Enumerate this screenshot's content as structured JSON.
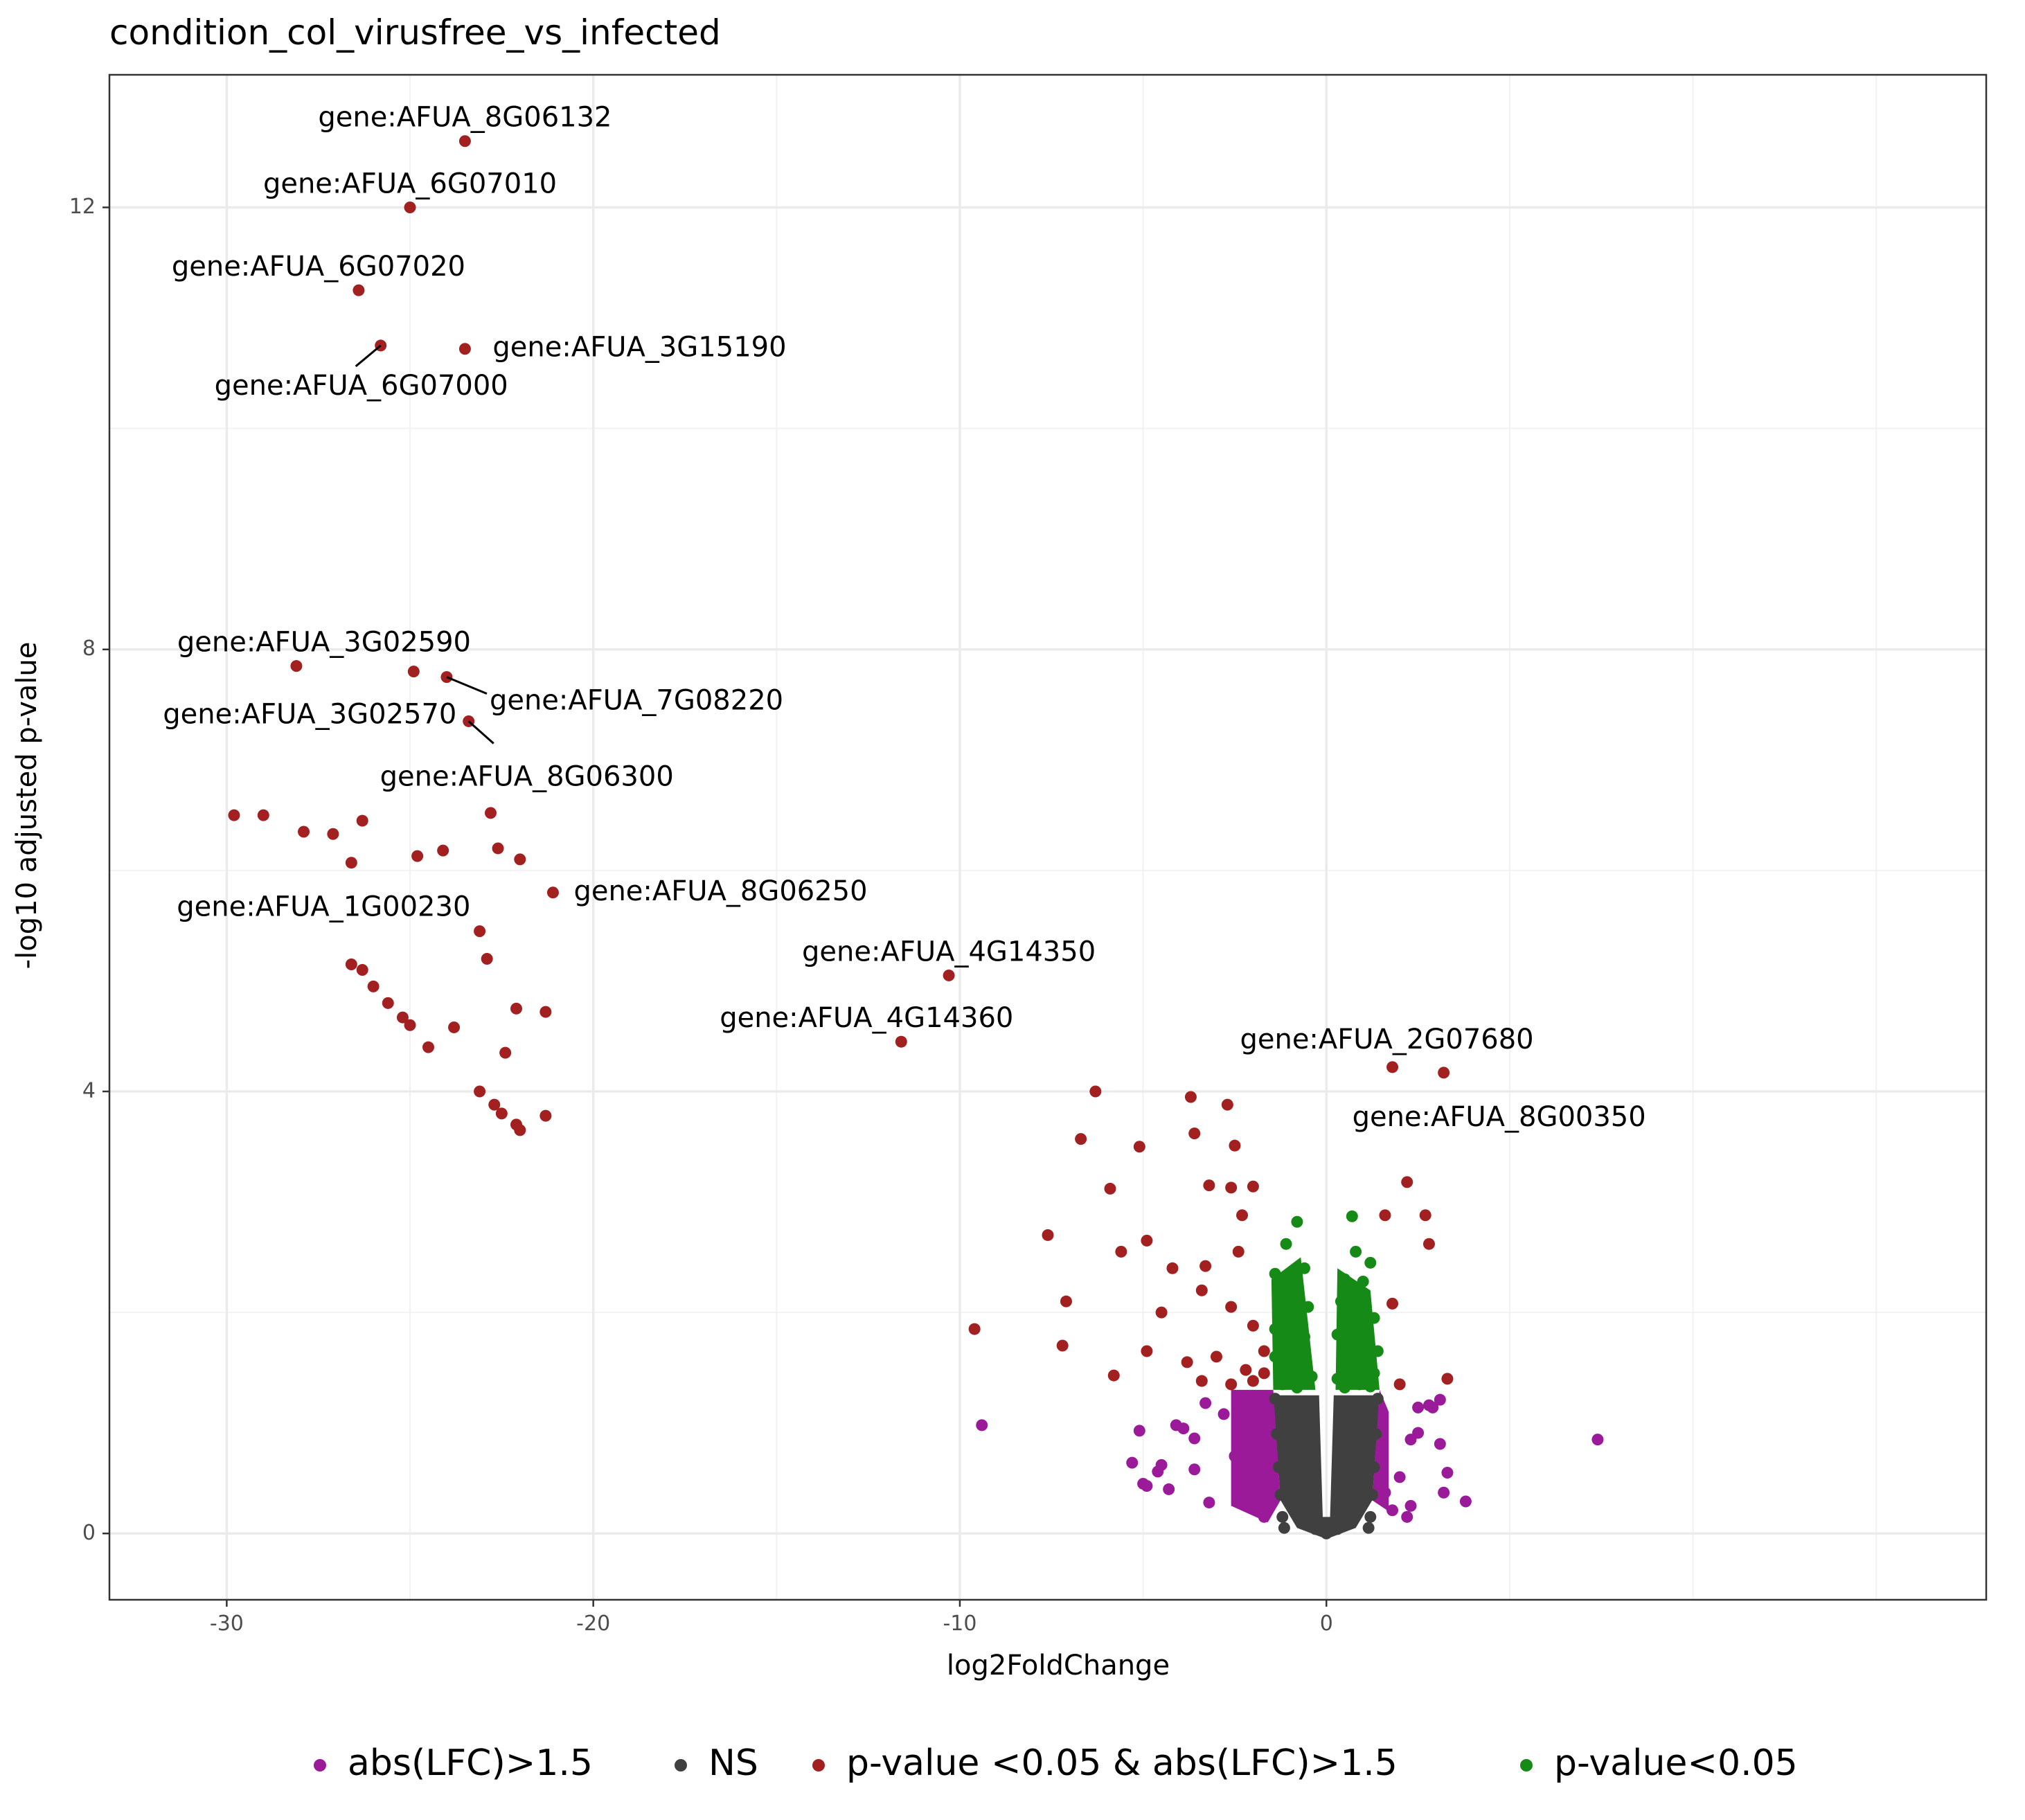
{
  "chart_data": {
    "type": "scatter",
    "title": "condition_col_virusfree_vs_infected",
    "xlabel": "log2FoldChange",
    "ylabel": "-log10 adjusted p-value",
    "xlim": [
      -33.2,
      18.0
    ],
    "ylim": [
      -0.6,
      13.2
    ],
    "xticks": [
      -30,
      -20,
      -10,
      0
    ],
    "yticks": [
      0,
      4,
      8,
      12
    ],
    "xtick_labels": [
      "-30",
      "-20",
      "-10",
      "0"
    ],
    "ytick_labels": [
      "0",
      "4",
      "8",
      "12"
    ],
    "minor_xticks": [
      -25,
      -15,
      -5,
      5,
      10,
      15
    ],
    "minor_yticks": [
      2,
      6,
      10
    ],
    "grid": true,
    "legend_position": "bottom",
    "colors": {
      "abs_lfc": "#9a1a9a",
      "ns": "#404040",
      "sig_lfc": "#a32020",
      "sig": "#168a16"
    },
    "series": [
      {
        "name": "abs(LFC)>1.5",
        "color_key": "abs_lfc",
        "points": [
          [
            -9.4,
            0.98
          ],
          [
            7.4,
            0.85
          ],
          [
            3.8,
            0.29
          ],
          [
            3.2,
            0.37
          ],
          [
            3.3,
            0.55
          ],
          [
            3.1,
            0.81
          ],
          [
            2.8,
            1.16
          ],
          [
            3.1,
            1.21
          ],
          [
            2.9,
            1.14
          ],
          [
            2.5,
            0.91
          ],
          [
            2.5,
            1.14
          ],
          [
            2.3,
            0.85
          ],
          [
            2.0,
            0.51
          ],
          [
            2.3,
            0.25
          ],
          [
            1.8,
            0.21
          ],
          [
            1.6,
            0.37
          ],
          [
            2.2,
            0.15
          ],
          [
            -5.3,
            0.64
          ],
          [
            -5.0,
            0.45
          ],
          [
            -4.6,
            0.56
          ],
          [
            -4.3,
            0.4
          ],
          [
            -3.9,
            0.95
          ],
          [
            -3.6,
            0.86
          ],
          [
            -3.6,
            0.58
          ],
          [
            -3.2,
            0.28
          ],
          [
            -3.3,
            1.18
          ],
          [
            -2.8,
            1.08
          ],
          [
            -2.5,
            0.7
          ],
          [
            -2.3,
            0.38
          ],
          [
            -2.1,
            1.23
          ],
          [
            -1.9,
            0.28
          ],
          [
            -1.7,
            0.15
          ],
          [
            -5.1,
            0.93
          ],
          [
            -4.9,
            0.43
          ],
          [
            -4.5,
            0.62
          ],
          [
            -4.1,
            0.98
          ]
        ]
      },
      {
        "name": "NS",
        "color_key": "ns",
        "points": [
          [
            -1.4,
            1.22
          ],
          [
            -1.35,
            0.9
          ],
          [
            -1.3,
            0.6
          ],
          [
            -1.25,
            0.35
          ],
          [
            -1.2,
            0.15
          ],
          [
            -1.15,
            0.05
          ],
          [
            -1.0,
            1.1
          ],
          [
            -0.9,
            0.8
          ],
          [
            -0.8,
            0.5
          ],
          [
            -0.7,
            0.3
          ],
          [
            -0.6,
            0.15
          ],
          [
            -0.5,
            0.08
          ],
          [
            -0.3,
            0.04
          ],
          [
            0.0,
            0.0
          ],
          [
            0.3,
            0.04
          ],
          [
            0.5,
            0.08
          ],
          [
            0.6,
            0.15
          ],
          [
            0.7,
            0.3
          ],
          [
            0.8,
            0.5
          ],
          [
            0.9,
            0.8
          ],
          [
            1.0,
            1.1
          ],
          [
            1.15,
            0.05
          ],
          [
            1.2,
            0.15
          ],
          [
            1.25,
            0.35
          ],
          [
            1.3,
            0.6
          ],
          [
            1.35,
            0.9
          ],
          [
            1.4,
            1.22
          ]
        ]
      },
      {
        "name": "p-value <0.05 & abs(LFC)>1.5",
        "color_key": "sig_lfc",
        "points": [
          [
            -23.5,
            12.6
          ],
          [
            -25.0,
            12.0
          ],
          [
            -26.4,
            11.25
          ],
          [
            -25.8,
            10.75
          ],
          [
            -23.5,
            10.72
          ],
          [
            -28.1,
            7.85
          ],
          [
            -24.9,
            7.8
          ],
          [
            -24.0,
            7.75
          ],
          [
            -23.4,
            7.35
          ],
          [
            -29.8,
            6.5
          ],
          [
            -29.0,
            6.5
          ],
          [
            -27.9,
            6.35
          ],
          [
            -27.1,
            6.33
          ],
          [
            -26.6,
            6.07
          ],
          [
            -26.3,
            6.45
          ],
          [
            -22.8,
            6.52
          ],
          [
            -24.8,
            6.13
          ],
          [
            -24.1,
            6.18
          ],
          [
            -22.6,
            6.2
          ],
          [
            -22.0,
            6.1
          ],
          [
            -21.1,
            5.8
          ],
          [
            -23.1,
            5.45
          ],
          [
            -22.9,
            5.2
          ],
          [
            -26.6,
            5.15
          ],
          [
            -26.3,
            5.1
          ],
          [
            -26.0,
            4.95
          ],
          [
            -25.6,
            4.8
          ],
          [
            -25.2,
            4.67
          ],
          [
            -25.0,
            4.6
          ],
          [
            -24.5,
            4.4
          ],
          [
            -23.8,
            4.58
          ],
          [
            -22.1,
            4.75
          ],
          [
            -21.3,
            4.72
          ],
          [
            -22.4,
            4.35
          ],
          [
            -23.1,
            4.0
          ],
          [
            -22.7,
            3.88
          ],
          [
            -22.5,
            3.8
          ],
          [
            -22.1,
            3.7
          ],
          [
            -21.3,
            3.78
          ],
          [
            -22.0,
            3.65
          ],
          [
            -10.3,
            5.05
          ],
          [
            -11.6,
            4.45
          ],
          [
            1.8,
            4.22
          ],
          [
            3.2,
            4.17
          ],
          [
            2.2,
            3.18
          ],
          [
            2.7,
            2.88
          ],
          [
            2.8,
            2.62
          ],
          [
            1.6,
            2.88
          ],
          [
            1.8,
            2.08
          ],
          [
            3.3,
            1.4
          ],
          [
            2.0,
            1.35
          ],
          [
            -6.3,
            4.0
          ],
          [
            -3.7,
            3.95
          ],
          [
            -2.7,
            3.88
          ],
          [
            -6.7,
            3.57
          ],
          [
            -5.1,
            3.5
          ],
          [
            -3.6,
            3.62
          ],
          [
            -2.5,
            3.51
          ],
          [
            -5.9,
            3.12
          ],
          [
            -3.2,
            3.15
          ],
          [
            -2.6,
            3.13
          ],
          [
            -2.0,
            3.14
          ],
          [
            -2.3,
            2.88
          ],
          [
            -7.6,
            2.7
          ],
          [
            -5.6,
            2.55
          ],
          [
            -4.9,
            2.65
          ],
          [
            -4.2,
            2.4
          ],
          [
            -3.3,
            2.42
          ],
          [
            -2.4,
            2.55
          ],
          [
            -7.1,
            2.1
          ],
          [
            -4.5,
            2.0
          ],
          [
            -3.4,
            2.2
          ],
          [
            -2.6,
            2.05
          ],
          [
            -2.0,
            1.88
          ],
          [
            -9.6,
            1.85
          ],
          [
            -7.2,
            1.7
          ],
          [
            -4.9,
            1.65
          ],
          [
            -3.8,
            1.55
          ],
          [
            -3.0,
            1.6
          ],
          [
            -2.2,
            1.48
          ],
          [
            -1.7,
            1.65
          ],
          [
            -5.8,
            1.43
          ],
          [
            -3.4,
            1.38
          ],
          [
            -2.6,
            1.35
          ],
          [
            -2.0,
            1.38
          ],
          [
            -1.7,
            1.45
          ]
        ]
      },
      {
        "name": "p-value<0.05",
        "color_key": "sig",
        "points": [
          [
            -0.8,
            2.82
          ],
          [
            0.7,
            2.87
          ],
          [
            -1.1,
            2.62
          ],
          [
            0.8,
            2.55
          ],
          [
            1.2,
            2.45
          ],
          [
            -1.4,
            2.35
          ],
          [
            -0.6,
            2.4
          ],
          [
            0.5,
            2.3
          ],
          [
            1.0,
            2.28
          ],
          [
            -1.3,
            2.1
          ],
          [
            -0.9,
            2.15
          ],
          [
            -0.5,
            2.05
          ],
          [
            0.4,
            2.1
          ],
          [
            0.9,
            2.0
          ],
          [
            1.3,
            1.95
          ],
          [
            -1.4,
            1.85
          ],
          [
            -1.0,
            1.8
          ],
          [
            -0.6,
            1.78
          ],
          [
            0.3,
            1.8
          ],
          [
            0.7,
            1.75
          ],
          [
            1.1,
            1.7
          ],
          [
            1.4,
            1.65
          ],
          [
            -1.4,
            1.6
          ],
          [
            -1.1,
            1.55
          ],
          [
            -0.7,
            1.5
          ],
          [
            -0.4,
            1.42
          ],
          [
            0.3,
            1.4
          ],
          [
            0.6,
            1.48
          ],
          [
            1.0,
            1.52
          ],
          [
            1.3,
            1.45
          ],
          [
            -1.2,
            1.35
          ],
          [
            -0.8,
            1.32
          ],
          [
            0.5,
            1.32
          ],
          [
            0.9,
            1.35
          ],
          [
            1.2,
            1.33
          ]
        ]
      }
    ],
    "labels": [
      {
        "text": "gene:AFUA_8G06132",
        "x": -23.5,
        "y": 12.6
      },
      {
        "text": "gene:AFUA_6G07010",
        "x": -25.0,
        "y": 12.0
      },
      {
        "text": "gene:AFUA_6G07020",
        "x": -26.4,
        "y": 11.25
      },
      {
        "text": "gene:AFUA_3G15190",
        "x": -23.5,
        "y": 10.72
      },
      {
        "text": "gene:AFUA_6G07000",
        "x": -25.8,
        "y": 10.75
      },
      {
        "text": "gene:AFUA_3G02590",
        "x": -28.1,
        "y": 7.85
      },
      {
        "text": "gene:AFUA_7G08220",
        "x": -24.0,
        "y": 7.75
      },
      {
        "text": "gene:AFUA_3G02570",
        "x": -24.9,
        "y": 7.8
      },
      {
        "text": "gene:AFUA_8G06300",
        "x": -23.4,
        "y": 7.35
      },
      {
        "text": "gene:AFUA_8G06250",
        "x": -21.1,
        "y": 5.8
      },
      {
        "text": "gene:AFUA_1G00230",
        "x": -26.6,
        "y": 6.07
      },
      {
        "text": "gene:AFUA_4G14350",
        "x": -10.3,
        "y": 5.05
      },
      {
        "text": "gene:AFUA_4G14360",
        "x": -11.6,
        "y": 4.45
      },
      {
        "text": "gene:AFUA_2G07680",
        "x": 1.8,
        "y": 4.22
      },
      {
        "text": "gene:AFUA_8G00350",
        "x": 3.2,
        "y": 4.17
      }
    ]
  }
}
